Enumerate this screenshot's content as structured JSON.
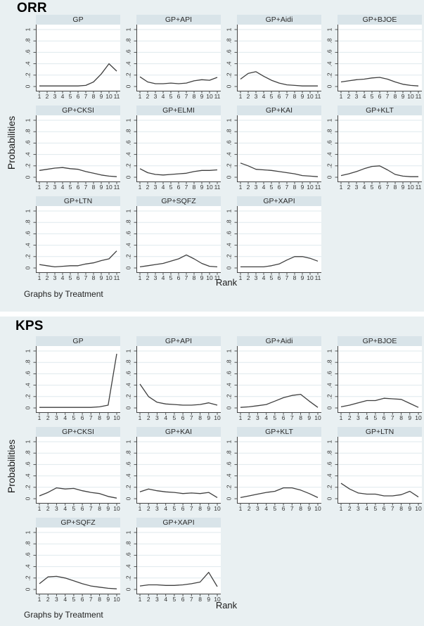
{
  "colors": {
    "panel_bg": "#e9f0f2",
    "title_bar": "#d9e4e9",
    "axis": "#444444",
    "text": "#333333",
    "plot_bg": "#ffffff"
  },
  "panels": [
    {
      "heading": "ORR",
      "ylabel": "Probabilities",
      "xlabel": "Rank",
      "footnote": "Graphs by Treatment"
    },
    {
      "heading": "KPS",
      "ylabel": "Probabilities",
      "xlabel": "Rank",
      "footnote": "Graphs by Treatment"
    }
  ],
  "chart_data": [
    {
      "panel": "ORR",
      "type": "line",
      "xlabel": "Rank",
      "ylabel": "Probabilities",
      "ylim": [
        0,
        1
      ],
      "grid": "horizontal",
      "legend": "none",
      "line_color": "#3f3f3f",
      "grid_color": "#dfe9ed",
      "yticks": [
        0,
        0.2,
        0.4,
        0.6,
        0.8,
        1
      ],
      "ytick_labels": [
        "0",
        ".2",
        ".4",
        ".6",
        ".8",
        "1"
      ],
      "x_labels": [
        "1",
        "2",
        "3",
        "4",
        "5",
        "6",
        "7",
        "8",
        "9",
        "10",
        "11"
      ],
      "series": [
        {
          "name": "GP",
          "values": [
            0.01,
            0.01,
            0.01,
            0.01,
            0.01,
            0.01,
            0.02,
            0.08,
            0.22,
            0.4,
            0.27
          ]
        },
        {
          "name": "GP+API",
          "values": [
            0.17,
            0.08,
            0.05,
            0.05,
            0.06,
            0.05,
            0.06,
            0.1,
            0.12,
            0.11,
            0.16
          ]
        },
        {
          "name": "GP+Aidi",
          "values": [
            0.13,
            0.23,
            0.26,
            0.18,
            0.11,
            0.06,
            0.03,
            0.02,
            0.01,
            0.01,
            0.01
          ]
        },
        {
          "name": "GP+BJOE",
          "values": [
            0.08,
            0.1,
            0.12,
            0.13,
            0.15,
            0.16,
            0.13,
            0.08,
            0.04,
            0.02,
            0.01
          ]
        },
        {
          "name": "GP+CKSI",
          "values": [
            0.12,
            0.14,
            0.16,
            0.17,
            0.15,
            0.14,
            0.1,
            0.07,
            0.04,
            0.02,
            0.01
          ]
        },
        {
          "name": "GP+ELMI",
          "values": [
            0.15,
            0.08,
            0.05,
            0.04,
            0.05,
            0.06,
            0.07,
            0.1,
            0.12,
            0.12,
            0.13
          ]
        },
        {
          "name": "GP+KAI",
          "values": [
            0.25,
            0.2,
            0.14,
            0.13,
            0.12,
            0.1,
            0.08,
            0.06,
            0.03,
            0.02,
            0.01
          ]
        },
        {
          "name": "GP+KLT",
          "values": [
            0.03,
            0.06,
            0.1,
            0.15,
            0.19,
            0.2,
            0.13,
            0.05,
            0.02,
            0.01,
            0.01
          ]
        },
        {
          "name": "GP+LTN",
          "values": [
            0.06,
            0.04,
            0.02,
            0.03,
            0.04,
            0.04,
            0.07,
            0.09,
            0.13,
            0.16,
            0.3
          ]
        },
        {
          "name": "GP+SQFZ",
          "values": [
            0.02,
            0.04,
            0.06,
            0.08,
            0.12,
            0.16,
            0.23,
            0.16,
            0.08,
            0.03,
            0.02
          ]
        },
        {
          "name": "GP+XAPI",
          "values": [
            0.02,
            0.02,
            0.02,
            0.02,
            0.04,
            0.07,
            0.14,
            0.2,
            0.2,
            0.17,
            0.12
          ]
        }
      ]
    },
    {
      "panel": "KPS",
      "type": "line",
      "xlabel": "Rank",
      "ylabel": "Probabilities",
      "ylim": [
        0,
        1
      ],
      "grid": "horizontal",
      "legend": "none",
      "line_color": "#3f3f3f",
      "grid_color": "#dfe9ed",
      "yticks": [
        0,
        0.2,
        0.4,
        0.6,
        0.8,
        1
      ],
      "ytick_labels": [
        "0",
        ".2",
        ".4",
        ".6",
        ".8",
        "1"
      ],
      "x_labels": [
        "1",
        "2",
        "3",
        "4",
        "5",
        "6",
        "7",
        "8",
        "9",
        "10"
      ],
      "series": [
        {
          "name": "GP",
          "values": [
            0.01,
            0.01,
            0.01,
            0.01,
            0.01,
            0.01,
            0.01,
            0.02,
            0.05,
            0.95
          ]
        },
        {
          "name": "GP+API",
          "values": [
            0.42,
            0.2,
            0.1,
            0.07,
            0.06,
            0.05,
            0.05,
            0.06,
            0.09,
            0.05
          ]
        },
        {
          "name": "GP+Aidi",
          "values": [
            0.01,
            0.02,
            0.04,
            0.06,
            0.12,
            0.18,
            0.22,
            0.24,
            0.12,
            0.01
          ]
        },
        {
          "name": "GP+BJOE",
          "values": [
            0.02,
            0.05,
            0.09,
            0.13,
            0.13,
            0.17,
            0.16,
            0.15,
            0.08,
            0.01
          ]
        },
        {
          "name": "GP+CKSI",
          "values": [
            0.05,
            0.11,
            0.19,
            0.17,
            0.18,
            0.14,
            0.11,
            0.09,
            0.04,
            0.01
          ]
        },
        {
          "name": "GP+KAI",
          "values": [
            0.12,
            0.17,
            0.14,
            0.12,
            0.11,
            0.09,
            0.1,
            0.09,
            0.11,
            0.02
          ]
        },
        {
          "name": "GP+KLT",
          "values": [
            0.02,
            0.05,
            0.08,
            0.11,
            0.13,
            0.19,
            0.19,
            0.15,
            0.09,
            0.02
          ]
        },
        {
          "name": "GP+LTN",
          "values": [
            0.27,
            0.17,
            0.1,
            0.08,
            0.08,
            0.05,
            0.05,
            0.07,
            0.13,
            0.03
          ]
        },
        {
          "name": "GP+SQFZ",
          "values": [
            0.1,
            0.22,
            0.23,
            0.2,
            0.15,
            0.1,
            0.06,
            0.04,
            0.02,
            0.01
          ]
        },
        {
          "name": "GP+XAPI",
          "values": [
            0.06,
            0.08,
            0.08,
            0.07,
            0.07,
            0.08,
            0.1,
            0.13,
            0.3,
            0.05
          ]
        }
      ]
    }
  ]
}
